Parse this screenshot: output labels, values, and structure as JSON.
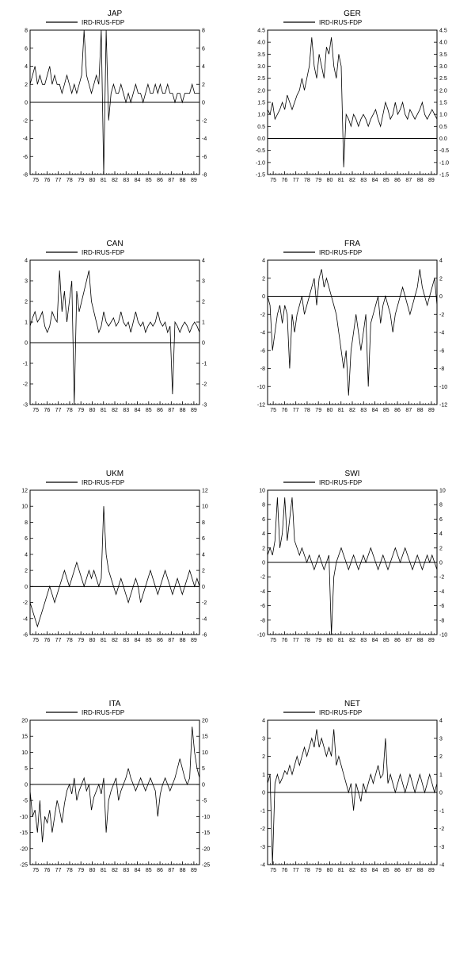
{
  "series_label": "IRD-IRUS-FDP",
  "x_axis": {
    "start": 75,
    "end": 89,
    "ticks": [
      75,
      76,
      77,
      78,
      79,
      80,
      81,
      82,
      83,
      84,
      85,
      86,
      87,
      88,
      89
    ]
  },
  "panels": [
    {
      "id": "jap",
      "title": "JAP",
      "ylim": [
        -8,
        8
      ],
      "ytick_step": 2,
      "data": [
        2,
        3,
        4,
        2,
        3,
        2,
        2,
        3,
        4,
        2,
        3,
        2,
        2,
        1,
        2,
        3,
        2,
        1,
        2,
        1,
        2,
        3,
        8,
        3,
        2,
        1,
        2,
        3,
        2,
        8,
        -8,
        8,
        -2,
        1,
        2,
        1,
        1,
        2,
        1,
        0,
        1,
        0,
        1,
        2,
        1,
        1,
        0,
        1,
        2,
        1,
        1,
        2,
        1,
        2,
        1,
        1,
        2,
        1,
        1,
        0,
        1,
        1,
        0,
        1,
        1,
        1,
        2,
        1,
        1,
        1
      ]
    },
    {
      "id": "ger",
      "title": "GER",
      "ylim": [
        -1.5,
        4.5
      ],
      "ytick_step": 0.5,
      "data": [
        1.2,
        1.0,
        1.5,
        0.8,
        1.0,
        1.2,
        1.5,
        1.2,
        1.8,
        1.5,
        1.2,
        1.5,
        1.8,
        2.0,
        2.5,
        2.0,
        2.5,
        3.0,
        4.2,
        3.0,
        2.5,
        3.5,
        3.0,
        2.5,
        3.8,
        3.5,
        4.2,
        3.0,
        2.5,
        3.5,
        3.0,
        -1.2,
        1.0,
        0.8,
        0.5,
        1.0,
        0.8,
        0.5,
        0.8,
        1.0,
        0.8,
        0.5,
        0.8,
        1.0,
        1.2,
        0.8,
        0.5,
        1.0,
        1.5,
        1.2,
        0.8,
        1.0,
        1.5,
        1.0,
        1.2,
        1.5,
        1.0,
        0.8,
        1.2,
        1.0,
        0.8,
        1.0,
        1.2,
        1.5,
        1.0,
        0.8,
        1.0,
        1.2,
        1.0,
        0.8
      ]
    },
    {
      "id": "can",
      "title": "CAN",
      "ylim": [
        -3,
        4
      ],
      "ytick_step": 1,
      "data": [
        0.8,
        1.2,
        1.5,
        1.0,
        1.2,
        1.5,
        0.8,
        0.5,
        0.8,
        1.5,
        1.2,
        1.0,
        3.5,
        1.5,
        2.5,
        1.0,
        2.0,
        3.0,
        -3.0,
        2.5,
        1.5,
        2.0,
        2.5,
        3.0,
        3.5,
        2.0,
        1.5,
        1.0,
        0.5,
        0.8,
        1.5,
        1.0,
        0.8,
        1.0,
        1.2,
        0.8,
        1.0,
        1.5,
        1.0,
        0.8,
        1.0,
        0.5,
        1.0,
        1.5,
        1.0,
        0.8,
        1.0,
        0.5,
        0.8,
        1.0,
        0.8,
        1.0,
        1.5,
        1.0,
        0.8,
        1.0,
        0.5,
        0.8,
        -2.5,
        1.0,
        0.8,
        0.5,
        0.8,
        1.0,
        0.8,
        0.5,
        0.8,
        1.0,
        0.8,
        0.5
      ]
    },
    {
      "id": "fra",
      "title": "FRA",
      "ylim": [
        -12,
        4
      ],
      "ytick_step": 2,
      "data": [
        0,
        -1,
        -6,
        -4,
        -2,
        -1,
        -3,
        -1,
        -2,
        -8,
        -2,
        -4,
        -2,
        -1,
        0,
        -2,
        -1,
        0,
        1,
        2,
        -1,
        2,
        3,
        1,
        2,
        1,
        0,
        -1,
        -2,
        -4,
        -6,
        -8,
        -6,
        -11,
        -6,
        -4,
        -2,
        -4,
        -6,
        -4,
        -2,
        -10,
        -3,
        -2,
        -1,
        0,
        -3,
        -1,
        0,
        -1,
        -2,
        -4,
        -2,
        -1,
        0,
        1,
        0,
        -1,
        -2,
        -1,
        0,
        1,
        3,
        1,
        0,
        -1,
        0,
        1,
        2,
        -1
      ]
    },
    {
      "id": "ukm",
      "title": "UKM",
      "ylim": [
        -6,
        12
      ],
      "ytick_step": 2,
      "data": [
        -2,
        -3,
        -4,
        -5,
        -4,
        -3,
        -2,
        -1,
        0,
        -1,
        -2,
        -1,
        0,
        1,
        2,
        1,
        0,
        1,
        2,
        3,
        2,
        1,
        0,
        1,
        2,
        1,
        2,
        1,
        0,
        1,
        10,
        4,
        2,
        1,
        0,
        -1,
        0,
        1,
        0,
        -1,
        -2,
        -1,
        0,
        1,
        0,
        -2,
        -1,
        0,
        1,
        2,
        1,
        0,
        -1,
        0,
        1,
        2,
        1,
        0,
        -1,
        0,
        1,
        0,
        -1,
        0,
        1,
        2,
        1,
        0,
        1,
        0
      ]
    },
    {
      "id": "swi",
      "title": "SWI",
      "ylim": [
        -10,
        10
      ],
      "ytick_step": 2,
      "data": [
        1,
        2,
        1,
        3,
        9,
        2,
        4,
        9,
        3,
        6,
        9,
        3,
        2,
        1,
        2,
        1,
        0,
        1,
        0,
        -1,
        0,
        1,
        0,
        -1,
        0,
        1,
        -10,
        -2,
        0,
        1,
        2,
        1,
        0,
        -1,
        0,
        1,
        0,
        -1,
        0,
        1,
        0,
        1,
        2,
        1,
        0,
        -1,
        0,
        1,
        0,
        -1,
        0,
        1,
        2,
        1,
        0,
        1,
        2,
        1,
        0,
        -1,
        0,
        1,
        0,
        -1,
        0,
        1,
        0,
        1,
        0,
        -1
      ]
    },
    {
      "id": "ita",
      "title": "ITA",
      "ylim": [
        -25,
        20
      ],
      "ytick_step": 5,
      "data": [
        -2,
        -10,
        -8,
        -15,
        -5,
        -18,
        -10,
        -12,
        -8,
        -15,
        -10,
        -5,
        -8,
        -12,
        -6,
        -2,
        0,
        -3,
        2,
        -5,
        -2,
        0,
        2,
        -2,
        0,
        -8,
        -4,
        -2,
        0,
        -3,
        2,
        -15,
        -5,
        -2,
        0,
        2,
        -5,
        -2,
        0,
        2,
        5,
        2,
        0,
        -2,
        0,
        2,
        0,
        -2,
        0,
        2,
        0,
        -2,
        -10,
        -3,
        0,
        2,
        0,
        -2,
        0,
        2,
        5,
        8,
        5,
        2,
        0,
        2,
        18,
        10,
        5,
        2
      ]
    },
    {
      "id": "net",
      "title": "NET",
      "ylim": [
        -4,
        4
      ],
      "ytick_step": 1,
      "data": [
        0.5,
        1.0,
        -4.0,
        0.5,
        1.0,
        0.5,
        0.8,
        1.2,
        1.0,
        1.5,
        1.0,
        1.5,
        2.0,
        1.5,
        2.0,
        2.5,
        2.0,
        2.5,
        3.0,
        2.5,
        3.5,
        2.5,
        3.0,
        2.5,
        2.0,
        2.5,
        2.0,
        3.5,
        1.5,
        2.0,
        1.5,
        1.0,
        0.5,
        0.0,
        0.5,
        -1.0,
        0.5,
        0.0,
        -0.5,
        0.5,
        0.0,
        0.5,
        1.0,
        0.5,
        1.0,
        1.5,
        0.8,
        1.0,
        3.0,
        0.5,
        1.0,
        0.5,
        0.0,
        0.5,
        1.0,
        0.5,
        0.0,
        0.5,
        1.0,
        0.5,
        0.0,
        0.5,
        1.0,
        0.5,
        0.0,
        0.5,
        1.0,
        0.5,
        0.0,
        0.5
      ]
    }
  ],
  "style": {
    "line_color": "#000000",
    "axis_color": "#000000",
    "background": "#ffffff",
    "title_fontsize": 10,
    "label_fontsize": 8,
    "tick_fontsize": 7,
    "line_width": 0.8
  }
}
